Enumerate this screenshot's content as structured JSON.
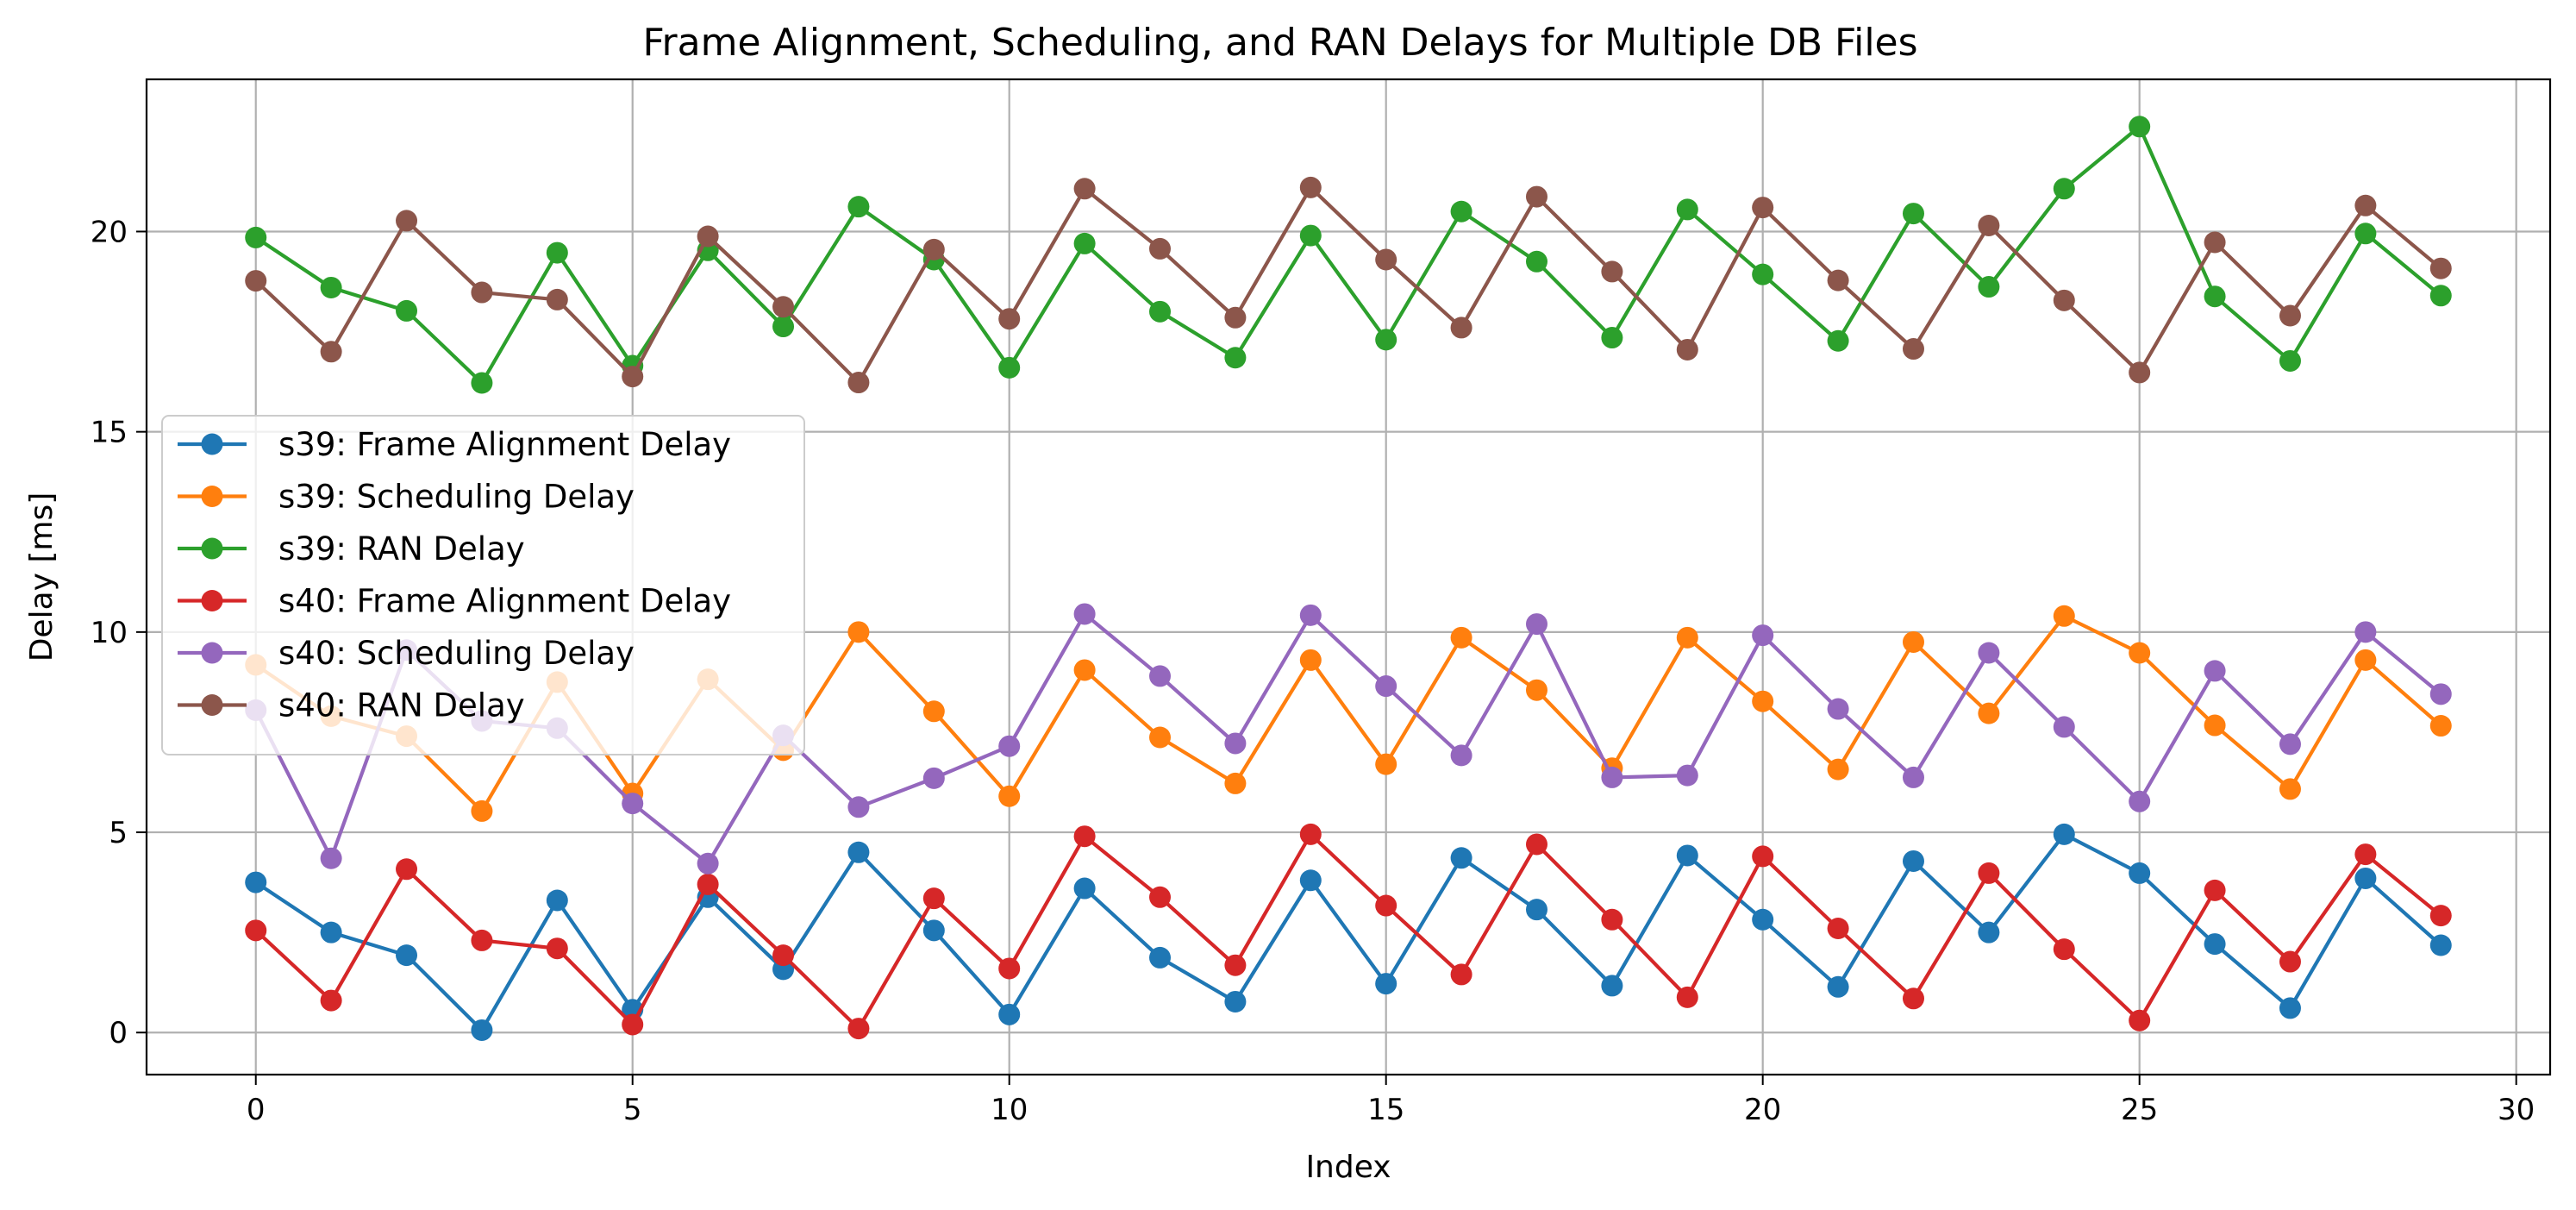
{
  "chart_data": {
    "type": "line",
    "title": "Frame Alignment, Scheduling, and RAN Delays for Multiple DB Files",
    "xlabel": "Index",
    "ylabel": "Delay [ms]",
    "xlim": [
      -1.45,
      30.45
    ],
    "ylim": [
      -1.05,
      23.8
    ],
    "xticks": [
      0,
      5,
      10,
      15,
      20,
      25,
      30
    ],
    "yticks": [
      0,
      5,
      10,
      15,
      20
    ],
    "grid": true,
    "legend_position": "center-left",
    "x": [
      0,
      1,
      2,
      3,
      4,
      5,
      6,
      7,
      8,
      9,
      10,
      11,
      12,
      13,
      14,
      15,
      16,
      17,
      18,
      19,
      20,
      21,
      22,
      23,
      24,
      25,
      26,
      27,
      28,
      29
    ],
    "series": [
      {
        "name": "s39: Frame Alignment Delay",
        "color": "#1f77b4",
        "values": [
          3.75,
          2.5,
          1.93,
          0.06,
          3.3,
          0.57,
          3.38,
          1.58,
          4.5,
          2.55,
          0.45,
          3.6,
          1.87,
          0.77,
          3.8,
          1.22,
          4.36,
          3.07,
          1.17,
          4.42,
          2.82,
          1.14,
          4.28,
          2.5,
          4.95,
          3.98,
          2.21,
          0.61,
          3.85,
          2.18
        ]
      },
      {
        "name": "s39: Scheduling Delay",
        "color": "#ff7f0e",
        "values": [
          9.18,
          7.9,
          7.4,
          5.53,
          8.75,
          5.97,
          8.82,
          7.05,
          10.0,
          8.02,
          5.9,
          9.05,
          7.37,
          6.22,
          9.3,
          6.7,
          9.86,
          8.55,
          6.6,
          9.86,
          8.27,
          6.57,
          9.75,
          7.97,
          10.4,
          9.48,
          7.67,
          6.08,
          9.3,
          7.66
        ]
      },
      {
        "name": "s39: RAN Delay",
        "color": "#2ca02c",
        "values": [
          19.85,
          18.6,
          18.02,
          16.22,
          19.47,
          16.65,
          19.53,
          17.63,
          20.62,
          19.3,
          16.6,
          19.7,
          18.0,
          16.85,
          19.9,
          17.3,
          20.5,
          19.25,
          17.35,
          20.55,
          18.93,
          17.27,
          20.45,
          18.62,
          21.07,
          22.62,
          18.38,
          16.77,
          19.95,
          18.4
        ]
      },
      {
        "name": "s40: Frame Alignment Delay",
        "color": "#d62728",
        "values": [
          2.55,
          0.8,
          4.08,
          2.3,
          2.1,
          0.2,
          3.7,
          1.93,
          0.1,
          3.35,
          1.6,
          4.9,
          3.38,
          1.68,
          4.95,
          3.17,
          1.45,
          4.7,
          2.82,
          0.88,
          4.4,
          2.6,
          0.85,
          3.98,
          2.08,
          0.3,
          3.55,
          1.77,
          4.45,
          2.92
        ]
      },
      {
        "name": "s40: Scheduling Delay",
        "color": "#9467bd",
        "values": [
          8.05,
          4.35,
          9.55,
          7.78,
          7.6,
          5.72,
          4.22,
          7.42,
          5.63,
          6.35,
          7.15,
          10.45,
          8.9,
          7.22,
          10.42,
          8.65,
          6.92,
          10.2,
          6.37,
          6.42,
          9.92,
          8.08,
          6.37,
          9.48,
          7.63,
          5.77,
          9.03,
          7.2,
          10.0,
          8.45
        ]
      },
      {
        "name": "s40: RAN Delay",
        "color": "#8c564b",
        "values": [
          18.77,
          17.0,
          20.27,
          18.48,
          18.3,
          16.38,
          19.88,
          18.12,
          16.23,
          19.55,
          17.82,
          21.07,
          19.57,
          17.85,
          21.1,
          19.3,
          17.6,
          20.87,
          19.0,
          17.05,
          20.6,
          18.78,
          17.07,
          20.15,
          18.28,
          16.48,
          19.73,
          17.9,
          20.65,
          19.08
        ]
      }
    ]
  }
}
